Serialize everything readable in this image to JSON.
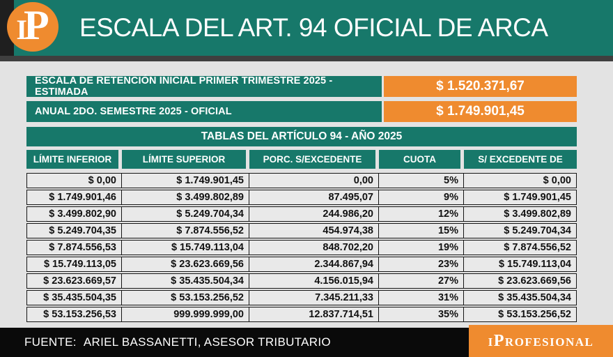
{
  "header": {
    "logo_i": "I",
    "logo_p": "P",
    "title": "ESCALA DEL ART. 94 OFICIAL DE ARCA"
  },
  "colors": {
    "teal": "#17786a",
    "orange": "#ef8b2f",
    "header_black": "#1f1f1f",
    "strip_gray": "#3f3f3f",
    "background": "#e3e3e3",
    "cell_background": "#e9e9e9",
    "footer_black": "#0a0a0a"
  },
  "banners": [
    {
      "label": "ESCALA DE RETENCIÓN INICIAL PRIMER TRIMESTRE 2025 - ESTIMADA",
      "value": "$ 1.520.371,67"
    },
    {
      "label": "ANUAL 2DO. SEMESTRE 2025 - OFICIAL",
      "value": "$ 1.749.901,45"
    }
  ],
  "chart_data": {
    "type": "table",
    "title": "TABLAS DEL ARTÍCULO 94 - AÑO 2025",
    "columns": [
      "LÍMITE INFERIOR",
      "LÍMITE SUPERIOR",
      "PORC. S/EXCEDENTE",
      "CUOTA",
      "S/ EXCEDENTE DE"
    ],
    "rows": [
      [
        "$ 0,00",
        "$ 1.749.901,45",
        "0,00",
        "5%",
        "$ 0,00"
      ],
      [
        "$ 1.749.901,46",
        "$ 3.499.802,89",
        "87.495,07",
        "9%",
        "$ 1.749.901,45"
      ],
      [
        "$ 3.499.802,90",
        "$ 5.249.704,34",
        "244.986,20",
        "12%",
        "$ 3.499.802,89"
      ],
      [
        "$ 5.249.704,35",
        "$ 7.874.556,52",
        "454.974,38",
        "15%",
        "$ 5.249.704,34"
      ],
      [
        "$ 7.874.556,53",
        "$ 15.749.113,04",
        "848.702,20",
        "19%",
        "$ 7.874.556,52"
      ],
      [
        "$ 15.749.113,05",
        "$ 23.623.669,56",
        "2.344.867,94",
        "23%",
        "$ 15.749.113,04"
      ],
      [
        "$ 23.623.669,57",
        "$ 35.435.504,34",
        "4.156.015,94",
        "27%",
        "$ 23.623.669,56"
      ],
      [
        "$ 35.435.504,35",
        "$ 53.153.256,52",
        "7.345.211,33",
        "31%",
        "$ 35.435.504,34"
      ],
      [
        "$ 53.153.256,53",
        "999.999.999,00",
        "12.837.714,51",
        "35%",
        "$ 53.153.256,52"
      ]
    ]
  },
  "footer": {
    "source": "FUENTE:  ARIEL BASSANETTI, ASESOR TRIBUTARIO",
    "brand": "iProfesional"
  }
}
